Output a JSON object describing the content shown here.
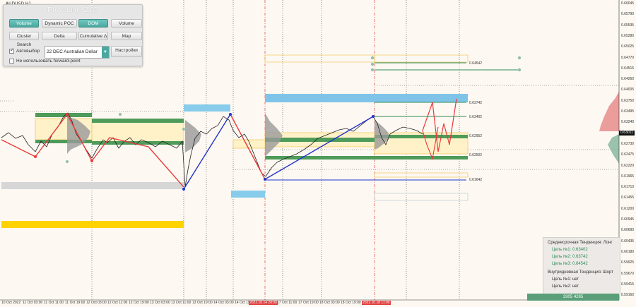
{
  "symbol": "AUDUSD,H1",
  "panel": {
    "title": "ProVolume 2.05",
    "buttons": [
      {
        "label": "Volume Profile",
        "on": true
      },
      {
        "label": "Dynamic POC",
        "on": false
      },
      {
        "label": "DOM",
        "on": true
      },
      {
        "label": "Volume",
        "on": false
      },
      {
        "label": "Cluster Search",
        "on": false
      },
      {
        "label": "Delta",
        "on": false
      },
      {
        "label": "Cumulative Δ",
        "on": false
      },
      {
        "label": "Map",
        "on": false
      }
    ],
    "autoselect_label": "Автовыбор",
    "autoselect_checked": true,
    "instrument_value": "22 DEC Australian Dollar",
    "settings_label": "Настройки",
    "forward_point_label": "Не использовать forward-point",
    "forward_point_checked": false
  },
  "info": {
    "mid_title": "Среднесрочная Тенденция: Лонг",
    "mid_targets": [
      "Цель №1: 0.63402",
      "Цель №2: 0.63742",
      "Цель №3: 0.64542"
    ],
    "intra_title": "Внутридневная Тенденция: Шорт",
    "intra_targets": [
      "Цель №1: нет",
      "Цель №2: нет"
    ]
  },
  "volume_bar": "3305  4285",
  "current_price": "0.63011",
  "price_axis": [
    "0.66045",
    "0.65790",
    "0.65535",
    "0.65280",
    "0.65025",
    "0.64770",
    "0.64515",
    "0.64260",
    "0.64005",
    "0.63750",
    "0.63495",
    "0.63240",
    "0.62985",
    "0.62730",
    "0.62475",
    "0.62220",
    "0.61965",
    "0.61710",
    "0.61455",
    "0.61200",
    "0.60945",
    "0.60690",
    "0.60435",
    "0.60180",
    "0.59925",
    "0.59670",
    "0.59415",
    "0.59160"
  ],
  "level_labels": [
    "0.64542",
    "0.63742",
    "0.63402",
    "0.62952",
    "0.62502",
    "0.61642"
  ],
  "time_axis": [
    "10 Oct 2022",
    "11 Oct 03:00",
    "11 Oct 11:00",
    "11 Oct 19:00",
    "12 Oct 03:00",
    "12 Oct 11:00",
    "12 Oct 19:00",
    "13 Oct 03:00",
    "13 Oct 11:00",
    "13 Oct 19:00",
    "14 Oct 03:00",
    "14 Oct 11:00",
    "17 Oct 03:00",
    "17 Oct 11:00",
    "17 Oct 19:00",
    "18 Oct 03:00",
    "18 Oct 19:00",
    "19 Oct 03:00"
  ],
  "time_highlights": [
    "2022.10.14 20:00",
    "2022.10.18 11:00"
  ],
  "colors": {
    "background": "#fdf8f2",
    "accent": "#4aa8a0",
    "bull_zone": "#7fc4e8",
    "green_level": "#4e9b5a",
    "gold": "#ffd200",
    "red_wave": "#e83b3b",
    "blue_trend": "#2233cc"
  }
}
